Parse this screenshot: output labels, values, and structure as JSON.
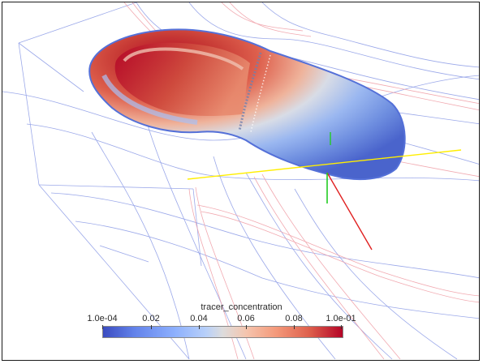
{
  "scene": {
    "field": "tracer_concentration",
    "plume_colors": {
      "high": "#b40426",
      "mid": "#dddcdc",
      "low": "#3b4cc0"
    },
    "axes_colors": {
      "x": "#ff2020",
      "y": "#ffff00",
      "z": "#22cc22"
    }
  },
  "colorbar": {
    "title": "tracer_concentration",
    "ticks": [
      "1.0e-04",
      "0.02",
      "0.04",
      "0.06",
      "0.08",
      "1.0e-01"
    ],
    "range": [
      0.0001,
      0.1
    ],
    "colormap": "Cool to Warm"
  }
}
